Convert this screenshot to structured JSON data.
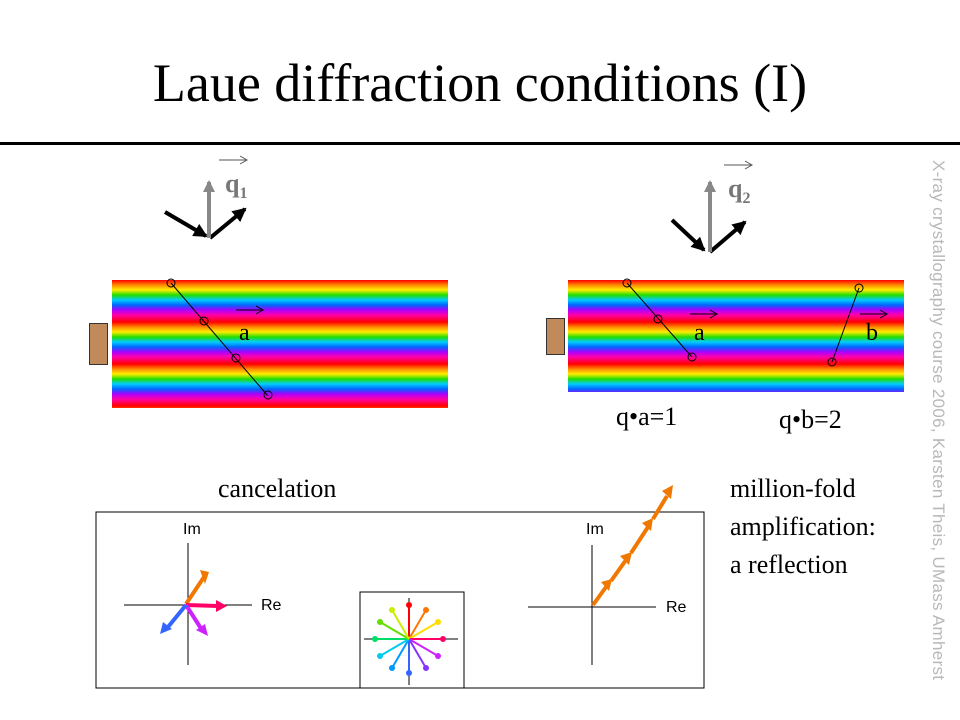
{
  "slide": {
    "title": "Laue diffraction conditions (I)",
    "watermark": "X-ray crystallography course 2006, Karsten Theis, UMass Amherst"
  },
  "left_panel": {
    "vector_label": "q",
    "vector_subscript": "1",
    "lattice_label": "a"
  },
  "right_panel": {
    "vector_label": "q",
    "vector_subscript": "2",
    "lattice_label_a": "a",
    "lattice_label_b": "b",
    "equation_a": "q•a=1",
    "equation_b": "q•b=2"
  },
  "captions": {
    "cancelation": "cancelation",
    "amplification_line1": "million-fold",
    "amplification_line2": "amplification:",
    "amplification_line3": "a reflection"
  },
  "argand_left": {
    "im_label": "Im",
    "re_label": "Re"
  },
  "argand_right": {
    "im_label": "Im",
    "re_label": "Re"
  },
  "colors": {
    "arrow_orange": "#f07800",
    "arrow_pink": "#ff0066",
    "arrow_magenta": "#cc22ff",
    "arrow_blue": "#3366ff",
    "vector_gray": "#888888"
  }
}
